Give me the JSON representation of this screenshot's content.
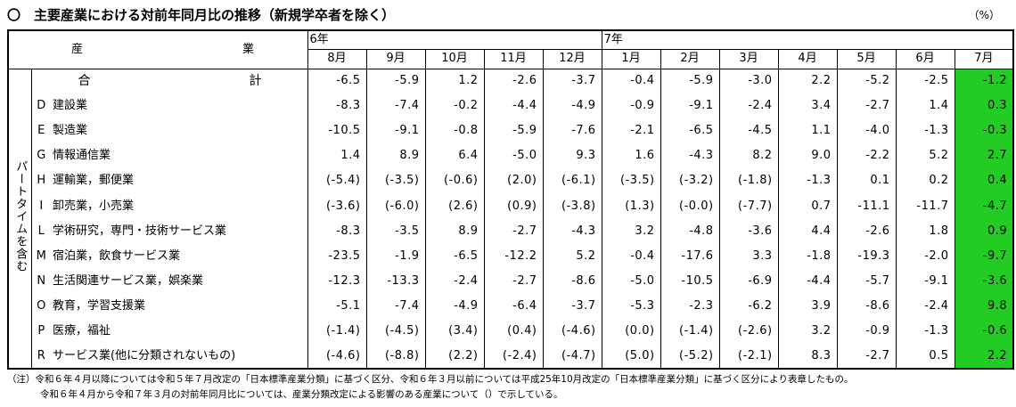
{
  "title": "〇　主要産業における対前年同月比の推移（新規学卒者を除く）",
  "unit": "（%）",
  "header": {
    "label_left": "産",
    "label_right": "業",
    "years": [
      {
        "label": "6年",
        "span": 5
      },
      {
        "label": "7年",
        "span": 7
      }
    ],
    "months": [
      "8月",
      "9月",
      "10月",
      "11月",
      "12月",
      "1月",
      "2月",
      "3月",
      "4月",
      "5月",
      "6月",
      "7月"
    ]
  },
  "side_label": "パートタイムを含む",
  "highlight_color": "#22cc22",
  "rows": [
    {
      "code": "",
      "name": "",
      "total_left": "合",
      "total_right": "計",
      "values": [
        "-6.5",
        "-5.9",
        "1.2",
        "-2.6",
        "-3.7",
        "-0.4",
        "-5.9",
        "-3.0",
        "2.2",
        "-5.2",
        "-2.5",
        "-1.2"
      ]
    },
    {
      "code": "D",
      "name": "建設業",
      "values": [
        "-8.3",
        "-7.4",
        "-0.2",
        "-4.4",
        "-4.9",
        "-0.9",
        "-9.1",
        "-2.4",
        "3.4",
        "-2.7",
        "1.4",
        "0.3"
      ]
    },
    {
      "code": "E",
      "name": "製造業",
      "values": [
        "-10.5",
        "-9.1",
        "-0.8",
        "-5.9",
        "-7.6",
        "-2.1",
        "-6.5",
        "-4.5",
        "1.1",
        "-4.0",
        "-1.3",
        "-0.3"
      ]
    },
    {
      "code": "G",
      "name": "情報通信業",
      "values": [
        "1.4",
        "8.9",
        "6.4",
        "-5.0",
        "9.3",
        "1.6",
        "-4.3",
        "8.2",
        "9.0",
        "-2.2",
        "5.2",
        "2.7"
      ]
    },
    {
      "code": "H",
      "name": "運輸業，郵便業",
      "values": [
        "(-5.4)",
        "(-3.5)",
        "(-0.6)",
        "(2.0)",
        "(-6.1)",
        "(-3.5)",
        "(-3.2)",
        "(-1.8)",
        "-1.3",
        "0.1",
        "0.2",
        "0.4"
      ]
    },
    {
      "code": "I",
      "name": "卸売業，小売業",
      "values": [
        "(-3.6)",
        "(-6.0)",
        "(2.6)",
        "(0.9)",
        "(-3.8)",
        "(1.3)",
        "(-0.0)",
        "(-7.7)",
        "0.7",
        "-11.1",
        "-11.7",
        "-4.7"
      ]
    },
    {
      "code": "L",
      "name": "学術研究，専門・技術サービス業",
      "values": [
        "-8.3",
        "-3.5",
        "8.9",
        "-2.7",
        "-4.3",
        "3.2",
        "-4.8",
        "-3.6",
        "4.4",
        "-2.6",
        "1.8",
        "0.9"
      ]
    },
    {
      "code": "M",
      "name": "宿泊業，飲食サービス業",
      "values": [
        "-23.5",
        "-1.9",
        "-6.5",
        "-12.2",
        "5.2",
        "-0.4",
        "-17.6",
        "3.3",
        "-1.8",
        "-19.3",
        "-2.0",
        "-9.7"
      ]
    },
    {
      "code": "N",
      "name": "生活関連サービス業，娯楽業",
      "values": [
        "-12.3",
        "-13.3",
        "-2.4",
        "-2.7",
        "-8.6",
        "-5.0",
        "-10.5",
        "-6.9",
        "-4.4",
        "-5.7",
        "-9.1",
        "-3.6"
      ]
    },
    {
      "code": "O",
      "name": "教育，学習支援業",
      "values": [
        "-5.1",
        "-7.4",
        "-4.9",
        "-6.4",
        "-3.7",
        "-5.3",
        "-2.3",
        "-6.2",
        "3.9",
        "-8.6",
        "-2.4",
        "9.8"
      ]
    },
    {
      "code": "P",
      "name": "医療，福祉",
      "values": [
        "(-1.4)",
        "(-4.5)",
        "(3.4)",
        "(0.4)",
        "(-4.6)",
        "(0.0)",
        "(-1.4)",
        "(-2.6)",
        "3.2",
        "-0.9",
        "-1.3",
        "-0.6"
      ]
    },
    {
      "code": "R",
      "name": "サービス業(他に分類されないもの)",
      "values": [
        "(-4.6)",
        "(-8.8)",
        "(2.2)",
        "(-2.4)",
        "(-4.7)",
        "(5.0)",
        "(-5.2)",
        "(-2.1)",
        "8.3",
        "-2.7",
        "0.5",
        "2.2"
      ]
    }
  ],
  "notes": [
    "（注）令和６年４月以降については令和５年７月改定の「日本標準産業分類」に基づく区分、令和６年３月以前については平成25年10月改定の「日本標準産業分類」に基づく区分により表章したもの。",
    "令和６年４月から令和７年３月の対前年同月比については、産業分類改定による影響のある産業について（）で示している。"
  ]
}
